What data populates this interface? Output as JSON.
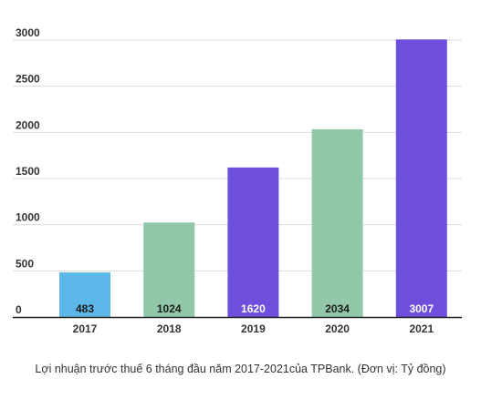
{
  "chart_data": {
    "type": "bar",
    "categories": [
      "2017",
      "2018",
      "2019",
      "2020",
      "2021"
    ],
    "values": [
      483,
      1024,
      1620,
      2034,
      3007
    ],
    "data_labels": [
      "483",
      "1024",
      "1620",
      "2034",
      "3007"
    ],
    "bar_colors": [
      "#5cb8e8",
      "#92c8a9",
      "#6e4fdc",
      "#92c8a9",
      "#6e4fdc"
    ],
    "label_colors": [
      "#1a1a1a",
      "#1a1a1a",
      "#ffffff",
      "#1a1a1a",
      "#ffffff"
    ],
    "ylim": [
      0,
      3000
    ],
    "yticks": [
      0,
      500,
      1000,
      1500,
      2000,
      2500,
      3000
    ],
    "grid": true,
    "legend": "none"
  },
  "caption": "Lợi nhuận trước thuế 6 tháng đầu năm 2017-2021của TPBank. (Đơn vị: Tỷ đồng)"
}
